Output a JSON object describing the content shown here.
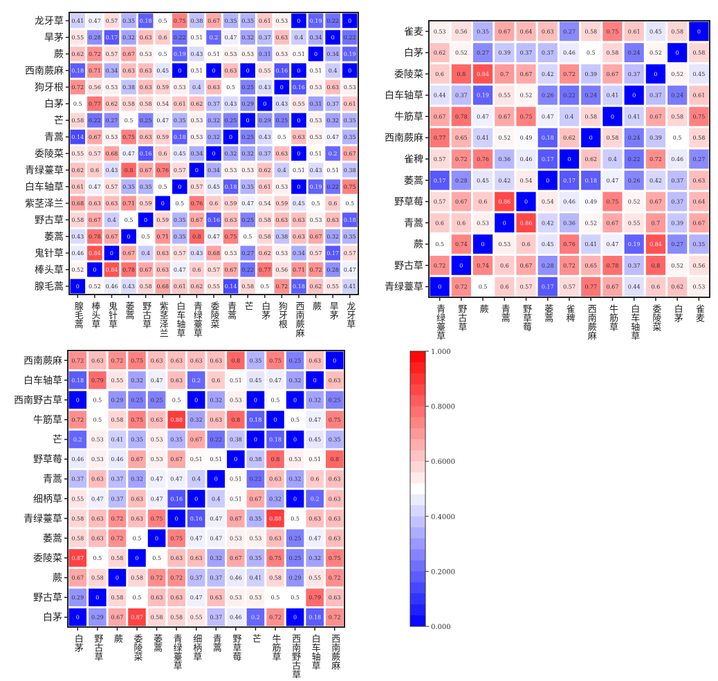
{
  "chart_data": [
    {
      "type": "heatmap",
      "title": "",
      "rows": [
        "龙牙草",
        "旱茅",
        "蕨",
        "西南蕨麻",
        "狗牙根",
        "白茅",
        "芒",
        "青蒿",
        "委陵菜",
        "青绿薹草",
        "白车轴草",
        "紫茎泽兰",
        "野古草",
        "萎蒿",
        "鬼针草",
        "棒头草",
        "腺毛蒿"
      ],
      "columns": [
        "腺毛蒿",
        "棒头草",
        "鬼针草",
        "萎蒿",
        "野古草",
        "紫茎泽兰",
        "白车轴草",
        "青绿薹草",
        "委陵菜",
        "青蒿",
        "芒",
        "白茅",
        "狗牙根",
        "西南蕨麻",
        "蕨",
        "旱茅",
        "龙牙草"
      ],
      "values": [
        [
          0.41,
          0.47,
          0.57,
          0.35,
          0.18,
          0.5,
          0.75,
          0.38,
          0.67,
          0.35,
          0.35,
          0.61,
          0.53,
          0,
          0.19,
          0.22,
          0
        ],
        [
          0.55,
          0.28,
          0.17,
          0.32,
          0.63,
          0.6,
          0.22,
          0.51,
          0.2,
          0.47,
          0.32,
          0.37,
          0.63,
          0.4,
          0.34,
          0,
          0.22
        ],
        [
          0.62,
          0.72,
          0.57,
          0.67,
          0.53,
          0.5,
          0.19,
          0.43,
          0.51,
          0.53,
          0.53,
          0.31,
          0.53,
          0.51,
          0,
          0.34,
          0.19
        ],
        [
          0.18,
          0.71,
          0.34,
          0.63,
          0.63,
          0.45,
          0,
          0.51,
          0,
          0.63,
          0,
          0.55,
          0.16,
          0,
          0.51,
          0.4,
          0
        ],
        [
          0.72,
          0.56,
          0.53,
          0.38,
          0.63,
          0.59,
          0.53,
          0.4,
          0.63,
          0.5,
          0.25,
          0.43,
          0,
          0.16,
          0.53,
          0.63,
          0.53
        ],
        [
          0.5,
          0.77,
          0.62,
          0.58,
          0.58,
          0.54,
          0.61,
          0.62,
          0.37,
          0.43,
          0.29,
          0,
          0.43,
          0.55,
          0.31,
          0.37,
          0.61
        ],
        [
          0.58,
          0.22,
          0.27,
          0.5,
          0.25,
          0.47,
          0.35,
          0.53,
          0.32,
          0.25,
          0,
          0.29,
          0.25,
          0,
          0.53,
          0.32,
          0.35
        ],
        [
          0.14,
          0.67,
          0.53,
          0.75,
          0.63,
          0.59,
          0.18,
          0.53,
          0.32,
          0,
          0.25,
          0.43,
          0.5,
          0.63,
          0.53,
          0.47,
          0.35
        ],
        [
          0.55,
          0.57,
          0.68,
          0.47,
          0.16,
          0.6,
          0.45,
          0.34,
          0,
          0.32,
          0.32,
          0.37,
          0.63,
          0,
          0.51,
          0.2,
          0.67
        ],
        [
          0.62,
          0.6,
          0.43,
          0.8,
          0.67,
          0.76,
          0.57,
          0,
          0.34,
          0.53,
          0.53,
          0.62,
          0.4,
          0.51,
          0.43,
          0.51,
          0.38
        ],
        [
          0.61,
          0.47,
          0.57,
          0.35,
          0.35,
          0.5,
          0,
          0.57,
          0.45,
          0.18,
          0.35,
          0.61,
          0.53,
          0,
          0.19,
          0.22,
          0.75
        ],
        [
          0.68,
          0.63,
          0.63,
          0.71,
          0.59,
          0,
          0.5,
          0.76,
          0.6,
          0.59,
          0.47,
          0.54,
          0.59,
          0.45,
          0.5,
          0.6,
          0.5
        ],
        [
          0.58,
          0.67,
          0.4,
          0.5,
          0,
          0.59,
          0.35,
          0.67,
          0.16,
          0.63,
          0.25,
          0.58,
          0.63,
          0.63,
          0.53,
          0.63,
          0.18
        ],
        [
          0.43,
          0.78,
          0.67,
          0,
          0.5,
          0.71,
          0.35,
          0.8,
          0.47,
          0.75,
          0.5,
          0.58,
          0.38,
          0.63,
          0.67,
          0.32,
          0.35
        ],
        [
          0.46,
          0.84,
          0,
          0.67,
          0.4,
          0.63,
          0.57,
          0.43,
          0.68,
          0.53,
          0.27,
          0.62,
          0.53,
          0.34,
          0.57,
          0.17,
          0.57
        ],
        [
          0.52,
          0,
          0.84,
          0.78,
          0.67,
          0.63,
          0.47,
          0.6,
          0.57,
          0.67,
          0.22,
          0.77,
          0.56,
          0.71,
          0.72,
          0.28,
          0.47
        ],
        [
          0,
          0.52,
          0.46,
          0.43,
          0.58,
          0.68,
          0.61,
          0.62,
          0.55,
          0.14,
          0.58,
          0.5,
          0.72,
          0.18,
          0.62,
          0.55,
          0.41
        ]
      ],
      "vmin": 0,
      "vmax": 1,
      "colormap": "bwr"
    },
    {
      "type": "heatmap",
      "title": "",
      "rows": [
        "雀麦",
        "白茅",
        "委陵菜",
        "白车轴草",
        "牛筋草",
        "西南蕨麻",
        "雀稗",
        "萎蒿",
        "野草莓",
        "青蒿",
        "蕨",
        "野古草",
        "青绿薹草"
      ],
      "columns": [
        "青绿薹草",
        "野古草",
        "蕨",
        "青蒿",
        "野草莓",
        "萎蒿",
        "雀稗",
        "西南蕨麻",
        "牛筋草",
        "白车轴草",
        "委陵菜",
        "白茅",
        "雀麦"
      ],
      "values": [
        [
          0.53,
          0.56,
          0.35,
          0.67,
          0.64,
          0.63,
          0.27,
          0.58,
          0.75,
          0.61,
          0.45,
          0.58,
          0
        ],
        [
          0.62,
          0.52,
          0.27,
          0.39,
          0.37,
          0.37,
          0.46,
          0.5,
          0.58,
          0.24,
          0.52,
          0,
          0.58
        ],
        [
          0.6,
          0.8,
          0.84,
          0.7,
          0.67,
          0.42,
          0.72,
          0.39,
          0.67,
          0.37,
          0,
          0.52,
          0.45
        ],
        [
          0.44,
          0.37,
          0.19,
          0.55,
          0.52,
          0.26,
          0.22,
          0.24,
          0.41,
          0,
          0.37,
          0.24,
          0.61
        ],
        [
          0.67,
          0.78,
          0.47,
          0.67,
          0.75,
          0.47,
          0.4,
          0.58,
          0,
          0.41,
          0.67,
          0.58,
          0.75
        ],
        [
          0.77,
          0.65,
          0.41,
          0.52,
          0.49,
          0.18,
          0.62,
          0,
          0.58,
          0.24,
          0.39,
          0.5,
          0.58
        ],
        [
          0.57,
          0.72,
          0.76,
          0.36,
          0.46,
          0.17,
          0,
          0.62,
          0.4,
          0.22,
          0.72,
          0.46,
          0.27
        ],
        [
          0.17,
          0.28,
          0.45,
          0.42,
          0.54,
          0,
          0.17,
          0.18,
          0.47,
          0.26,
          0.42,
          0.37,
          0.63
        ],
        [
          0.57,
          0.67,
          0.6,
          0.86,
          0,
          0.54,
          0.46,
          0.49,
          0.75,
          0.52,
          0.67,
          0.37,
          0.64
        ],
        [
          0.6,
          0.6,
          0.53,
          0,
          0.86,
          0.42,
          0.36,
          0.52,
          0.67,
          0.55,
          0.7,
          0.39,
          0.67
        ],
        [
          0.5,
          0.74,
          0,
          0.53,
          0.6,
          0.45,
          0.76,
          0.41,
          0.47,
          0.19,
          0.84,
          0.27,
          0.35
        ],
        [
          0.72,
          0,
          0.74,
          0.6,
          0.67,
          0.28,
          0.72,
          0.65,
          0.78,
          0.37,
          0.8,
          0.52,
          0.56
        ],
        [
          0,
          0.72,
          0.5,
          0.6,
          0.57,
          0.17,
          0.57,
          0.77,
          0.67,
          0.44,
          0.6,
          0.62,
          0.53
        ]
      ],
      "vmin": 0,
      "vmax": 1,
      "colormap": "bwr"
    },
    {
      "type": "heatmap",
      "title": "",
      "rows": [
        "西南蕨麻",
        "白车轴草",
        "西南野古草",
        "牛筋草",
        "芒",
        "野草莓",
        "青蒿",
        "细柄草",
        "青绿薹草",
        "萎蒿",
        "委陵菜",
        "蕨",
        "野古草",
        "白茅"
      ],
      "columns": [
        "白茅",
        "野古草",
        "蕨",
        "委陵菜",
        "萎蒿",
        "青绿薹草",
        "细柄草",
        "青蒿",
        "野草莓",
        "芒",
        "牛筋草",
        "西南野古草",
        "白车轴草",
        "西南蕨麻"
      ],
      "values": [
        [
          0.72,
          0.63,
          0.72,
          0.75,
          0.63,
          0.63,
          0.63,
          0.63,
          0.8,
          0.35,
          0.75,
          0.25,
          0.63,
          0
        ],
        [
          0.18,
          0.79,
          0.55,
          0.32,
          0.47,
          0.63,
          0.2,
          0.6,
          0.51,
          0.45,
          0.47,
          0.32,
          0,
          0.63
        ],
        [
          0,
          0.5,
          0.29,
          0.25,
          0.25,
          0.5,
          0,
          0.32,
          0.53,
          0,
          0.5,
          0,
          0.32,
          0.25
        ],
        [
          0.72,
          0.5,
          0.58,
          0.75,
          0.63,
          0.88,
          0.32,
          0.63,
          0.8,
          0.18,
          0,
          0.5,
          0.47,
          0.75
        ],
        [
          0.2,
          0.53,
          0.41,
          0.35,
          0.53,
          0.35,
          0.67,
          0.22,
          0.38,
          0,
          0.18,
          0,
          0.45,
          0.35
        ],
        [
          0.46,
          0.53,
          0.46,
          0.67,
          0.53,
          0.67,
          0.51,
          0.51,
          0,
          0.38,
          0.8,
          0.53,
          0.51,
          0.8
        ],
        [
          0.37,
          0.63,
          0.37,
          0.32,
          0.47,
          0.47,
          0.4,
          0,
          0.51,
          0.22,
          0.63,
          0.32,
          0.6,
          0.63
        ],
        [
          0.55,
          0.47,
          0.37,
          0.63,
          0.47,
          0.16,
          0,
          0.4,
          0.51,
          0.67,
          0.32,
          0,
          0.2,
          0.63
        ],
        [
          0.58,
          0.63,
          0.72,
          0.63,
          0.75,
          0,
          0.16,
          0.47,
          0.67,
          0.35,
          0.88,
          0.5,
          0.63,
          0.63
        ],
        [
          0.58,
          0.63,
          0.72,
          0.5,
          0,
          0.75,
          0.47,
          0.47,
          0.53,
          0.53,
          0.63,
          0.25,
          0.47,
          0.63
        ],
        [
          0.87,
          0.5,
          0.58,
          0,
          0.5,
          0.63,
          0.63,
          0.32,
          0.67,
          0.35,
          0.75,
          0.25,
          0.32,
          0.75
        ],
        [
          0.67,
          0.58,
          0,
          0.58,
          0.72,
          0.72,
          0.37,
          0.37,
          0.46,
          0.41,
          0.58,
          0.29,
          0.55,
          0.72
        ],
        [
          0.29,
          0,
          0.58,
          0.5,
          0.63,
          0.63,
          0.47,
          0.63,
          0.53,
          0.53,
          0.5,
          0.5,
          0.79,
          0.63
        ],
        [
          0,
          0.29,
          0.67,
          0.87,
          0.58,
          0.58,
          0.55,
          0.37,
          0.46,
          0.2,
          0.72,
          0,
          0.18,
          0.72
        ]
      ],
      "vmin": 0,
      "vmax": 1,
      "colormap": "bwr"
    }
  ],
  "colorbar": {
    "ticks": [
      "0.000",
      "0.2000",
      "0.4000",
      "0.6000",
      "0.8000",
      "1.000"
    ],
    "tick_values": [
      0,
      0.2,
      0.4,
      0.6,
      0.8,
      1.0
    ],
    "range": [
      0,
      1
    ],
    "low_color": "#0000ff",
    "mid_color": "#ffffff",
    "high_color": "#ff0000"
  }
}
